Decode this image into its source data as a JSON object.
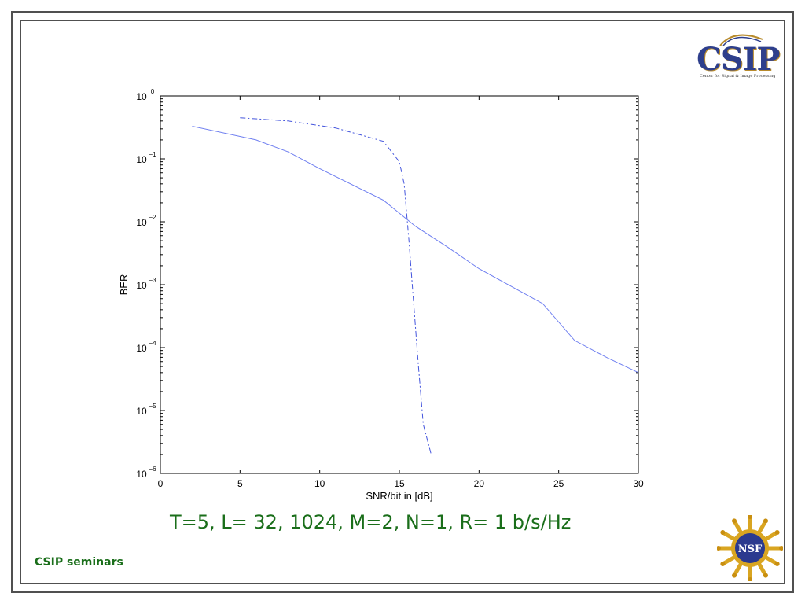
{
  "logo": {
    "text": "CSIP",
    "tagline": "Center for Signal & Image Processing"
  },
  "chart_data": {
    "type": "line",
    "xlabel": "SNR/bit in [dB]",
    "ylabel": "BER",
    "xlim": [
      0,
      30
    ],
    "ylim": [
      1e-06,
      1
    ],
    "yscale": "log",
    "x_ticks": [
      0,
      5,
      10,
      15,
      20,
      25,
      30
    ],
    "y_ticks": [
      {
        "base": "10",
        "exp": "0",
        "value": 1
      },
      {
        "base": "10",
        "exp": "−1",
        "value": 0.1
      },
      {
        "base": "10",
        "exp": "−2",
        "value": 0.01
      },
      {
        "base": "10",
        "exp": "−3",
        "value": 0.001
      },
      {
        "base": "10",
        "exp": "−4",
        "value": 0.0001
      },
      {
        "base": "10",
        "exp": "−5",
        "value": 1e-05
      },
      {
        "base": "10",
        "exp": "−6",
        "value": 1e-06
      }
    ],
    "grid": false,
    "series": [
      {
        "style": "solid",
        "color": "#6f7ff0",
        "points": [
          [
            2,
            0.33
          ],
          [
            6,
            0.2
          ],
          [
            8,
            0.13
          ],
          [
            10,
            0.07
          ],
          [
            14,
            0.022
          ],
          [
            16,
            0.0085
          ],
          [
            18,
            0.004
          ],
          [
            20,
            0.0018
          ],
          [
            24,
            0.0005
          ],
          [
            26,
            0.00013
          ],
          [
            28,
            7e-05
          ],
          [
            30,
            4e-05
          ]
        ]
      },
      {
        "style": "dashdot",
        "color": "#4455dd",
        "points": [
          [
            5,
            0.45
          ],
          [
            8,
            0.4
          ],
          [
            11,
            0.31
          ],
          [
            14,
            0.19
          ],
          [
            15,
            0.09
          ],
          [
            15.3,
            0.04
          ],
          [
            15.6,
            0.005
          ],
          [
            15.9,
            0.0005
          ],
          [
            16.2,
            5e-05
          ],
          [
            16.5,
            6e-06
          ],
          [
            17,
            2e-06
          ]
        ]
      }
    ]
  },
  "subtitle": "T=5, L=  32, 1024,  M=2, N=1, R= 1 b/s/Hz",
  "footer": "CSIP seminars",
  "nsf_logo_text": "NSF",
  "colors": {
    "frame": "#505050",
    "text_green": "#1a6e1a",
    "logo_blue": "#2e3f8c",
    "logo_gold": "#b88b2c"
  }
}
